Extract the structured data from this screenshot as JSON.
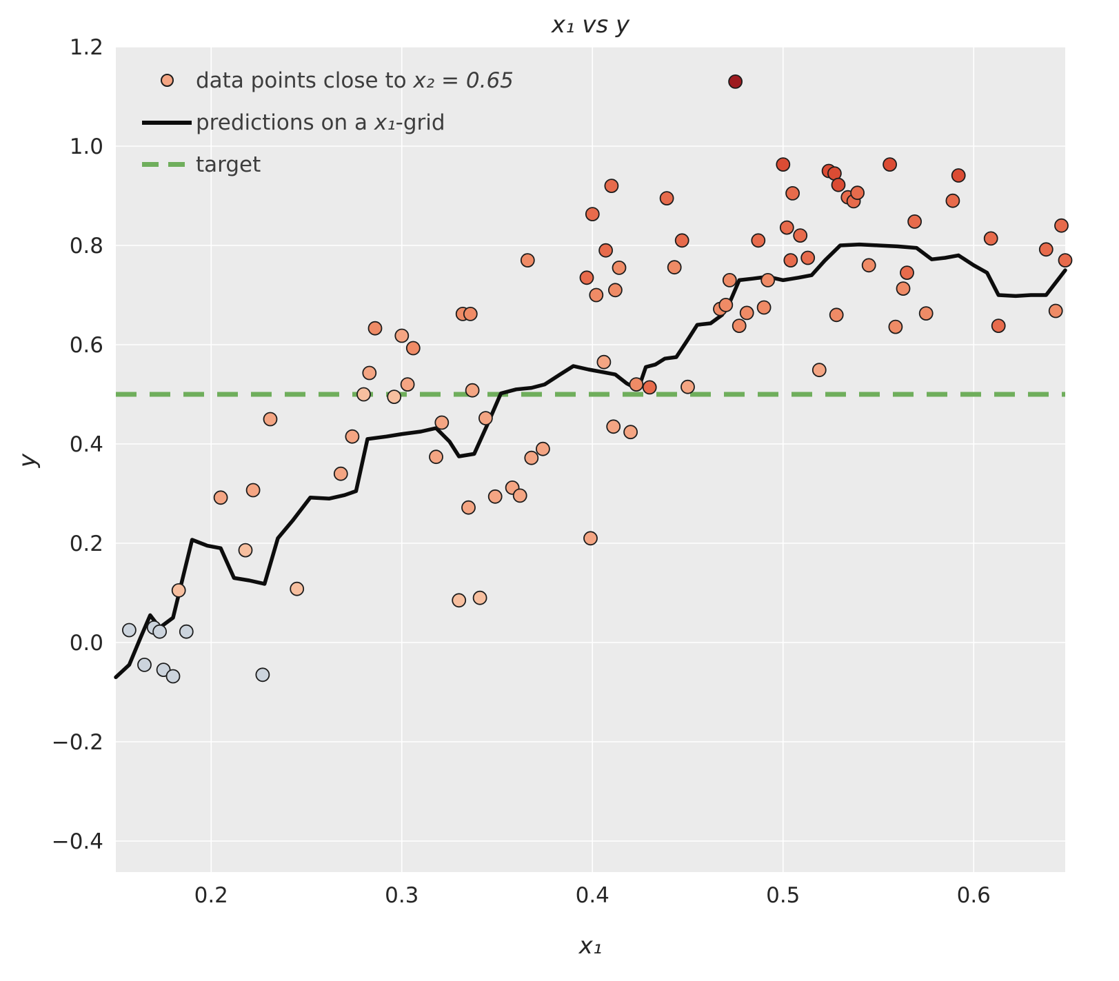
{
  "figure": {
    "title": "x₁ vs y",
    "xlabel": "x₁",
    "ylabel": "y"
  },
  "legend": {
    "items": [
      {
        "pre": "data points close to ",
        "math": "x₂ = 0.65",
        "post": "",
        "type": "marker",
        "color": "#f4a583"
      },
      {
        "pre": "predictions on a ",
        "math": "x₁",
        "post": "-grid",
        "type": "line",
        "color": "#0d0d0d"
      },
      {
        "pre": "target",
        "math": "",
        "post": "",
        "type": "dashed",
        "color": "#6fae5c"
      }
    ]
  },
  "chart_data": {
    "type": "scatter",
    "title": "x₁ vs y",
    "xlabel": "x₁",
    "ylabel": "y",
    "xlim": [
      0.15,
      0.648
    ],
    "ylim": [
      -0.4625,
      1.2
    ],
    "grid": true,
    "legend_position": "upper left",
    "background": "#ebebeb",
    "grid_color": "#ffffff",
    "tick_color": "#262626",
    "xticks": [
      {
        "v": 0.2,
        "label": "0.2"
      },
      {
        "v": 0.3,
        "label": "0.3"
      },
      {
        "v": 0.4,
        "label": "0.4"
      },
      {
        "v": 0.5,
        "label": "0.5"
      },
      {
        "v": 0.6,
        "label": "0.6"
      }
    ],
    "yticks": [
      {
        "v": -0.4,
        "label": "−0.4"
      },
      {
        "v": -0.2,
        "label": "−0.2"
      },
      {
        "v": 0.0,
        "label": "0.0"
      },
      {
        "v": 0.2,
        "label": "0.2"
      },
      {
        "v": 0.4,
        "label": "0.4"
      },
      {
        "v": 0.6,
        "label": "0.6"
      },
      {
        "v": 0.8,
        "label": "0.8"
      },
      {
        "v": 1.0,
        "label": "1.0"
      },
      {
        "v": 1.2,
        "label": "1.2"
      }
    ],
    "target_line": {
      "y": 0.5,
      "color": "#6fae5c",
      "dash": "30 19",
      "width": 7
    },
    "prediction_line": {
      "color": "#0d0d0d",
      "width": 5.5,
      "points": [
        [
          0.15,
          -0.07
        ],
        [
          0.157,
          -0.045
        ],
        [
          0.163,
          0.01
        ],
        [
          0.168,
          0.055
        ],
        [
          0.173,
          0.03
        ],
        [
          0.18,
          0.05
        ],
        [
          0.19,
          0.207
        ],
        [
          0.198,
          0.195
        ],
        [
          0.205,
          0.19
        ],
        [
          0.212,
          0.13
        ],
        [
          0.22,
          0.125
        ],
        [
          0.228,
          0.118
        ],
        [
          0.235,
          0.21
        ],
        [
          0.243,
          0.247
        ],
        [
          0.252,
          0.292
        ],
        [
          0.262,
          0.29
        ],
        [
          0.27,
          0.297
        ],
        [
          0.276,
          0.305
        ],
        [
          0.282,
          0.41
        ],
        [
          0.292,
          0.415
        ],
        [
          0.3,
          0.42
        ],
        [
          0.31,
          0.425
        ],
        [
          0.318,
          0.432
        ],
        [
          0.325,
          0.405
        ],
        [
          0.33,
          0.375
        ],
        [
          0.338,
          0.38
        ],
        [
          0.345,
          0.44
        ],
        [
          0.352,
          0.502
        ],
        [
          0.36,
          0.51
        ],
        [
          0.368,
          0.513
        ],
        [
          0.375,
          0.52
        ],
        [
          0.383,
          0.54
        ],
        [
          0.39,
          0.557
        ],
        [
          0.398,
          0.55
        ],
        [
          0.405,
          0.545
        ],
        [
          0.412,
          0.54
        ],
        [
          0.418,
          0.522
        ],
        [
          0.424,
          0.51
        ],
        [
          0.428,
          0.555
        ],
        [
          0.433,
          0.56
        ],
        [
          0.438,
          0.572
        ],
        [
          0.444,
          0.575
        ],
        [
          0.45,
          0.61
        ],
        [
          0.455,
          0.64
        ],
        [
          0.462,
          0.643
        ],
        [
          0.468,
          0.66
        ],
        [
          0.472,
          0.685
        ],
        [
          0.477,
          0.73
        ],
        [
          0.484,
          0.733
        ],
        [
          0.492,
          0.737
        ],
        [
          0.5,
          0.73
        ],
        [
          0.508,
          0.735
        ],
        [
          0.515,
          0.74
        ],
        [
          0.522,
          0.77
        ],
        [
          0.53,
          0.8
        ],
        [
          0.54,
          0.802
        ],
        [
          0.55,
          0.8
        ],
        [
          0.56,
          0.798
        ],
        [
          0.57,
          0.795
        ],
        [
          0.578,
          0.772
        ],
        [
          0.585,
          0.775
        ],
        [
          0.592,
          0.78
        ],
        [
          0.6,
          0.76
        ],
        [
          0.607,
          0.745
        ],
        [
          0.613,
          0.7
        ],
        [
          0.622,
          0.698
        ],
        [
          0.63,
          0.7
        ],
        [
          0.638,
          0.7
        ],
        [
          0.644,
          0.73
        ],
        [
          0.648,
          0.75
        ]
      ]
    },
    "scatter": {
      "radius": 9.5,
      "edge": "#1c1c1c",
      "edge_width": 1.8,
      "palette": [
        "#ccd4dd",
        "#f7bf9f",
        "#f4a583",
        "#ef8b66",
        "#e76b4c",
        "#db4c34",
        "#9e1b20"
      ],
      "points": [
        [
          0.157,
          0.025,
          0
        ],
        [
          0.165,
          -0.045,
          0
        ],
        [
          0.17,
          0.03,
          0
        ],
        [
          0.173,
          0.022,
          0
        ],
        [
          0.175,
          -0.055,
          0
        ],
        [
          0.18,
          -0.068,
          0
        ],
        [
          0.183,
          0.105,
          1
        ],
        [
          0.187,
          0.022,
          0
        ],
        [
          0.227,
          -0.065,
          0
        ],
        [
          0.205,
          0.292,
          2
        ],
        [
          0.218,
          0.186,
          1
        ],
        [
          0.222,
          0.307,
          2
        ],
        [
          0.231,
          0.45,
          2
        ],
        [
          0.245,
          0.108,
          1
        ],
        [
          0.268,
          0.34,
          2
        ],
        [
          0.274,
          0.415,
          2
        ],
        [
          0.28,
          0.5,
          1
        ],
        [
          0.283,
          0.543,
          2
        ],
        [
          0.286,
          0.633,
          3
        ],
        [
          0.296,
          0.495,
          1
        ],
        [
          0.3,
          0.618,
          2
        ],
        [
          0.303,
          0.52,
          2
        ],
        [
          0.306,
          0.593,
          3
        ],
        [
          0.318,
          0.374,
          2
        ],
        [
          0.321,
          0.443,
          2
        ],
        [
          0.33,
          0.085,
          1
        ],
        [
          0.332,
          0.662,
          3
        ],
        [
          0.336,
          0.662,
          3
        ],
        [
          0.335,
          0.272,
          2
        ],
        [
          0.337,
          0.508,
          2
        ],
        [
          0.341,
          0.09,
          1
        ],
        [
          0.344,
          0.452,
          2
        ],
        [
          0.349,
          0.294,
          2
        ],
        [
          0.358,
          0.312,
          2
        ],
        [
          0.362,
          0.296,
          2
        ],
        [
          0.366,
          0.77,
          3
        ],
        [
          0.368,
          0.372,
          2
        ],
        [
          0.374,
          0.39,
          2
        ],
        [
          0.397,
          0.735,
          4
        ],
        [
          0.399,
          0.21,
          2
        ],
        [
          0.4,
          0.863,
          4
        ],
        [
          0.402,
          0.7,
          3
        ],
        [
          0.406,
          0.565,
          2
        ],
        [
          0.407,
          0.79,
          4
        ],
        [
          0.41,
          0.92,
          4
        ],
        [
          0.411,
          0.435,
          2
        ],
        [
          0.412,
          0.71,
          3
        ],
        [
          0.414,
          0.755,
          3
        ],
        [
          0.42,
          0.424,
          2
        ],
        [
          0.423,
          0.52,
          3
        ],
        [
          0.43,
          0.514,
          4
        ],
        [
          0.439,
          0.895,
          4
        ],
        [
          0.443,
          0.756,
          3
        ],
        [
          0.447,
          0.81,
          4
        ],
        [
          0.45,
          0.515,
          2
        ],
        [
          0.467,
          0.672,
          3
        ],
        [
          0.47,
          0.68,
          3
        ],
        [
          0.472,
          0.73,
          3
        ],
        [
          0.475,
          1.13,
          6
        ],
        [
          0.477,
          0.638,
          3
        ],
        [
          0.481,
          0.664,
          3
        ],
        [
          0.487,
          0.81,
          4
        ],
        [
          0.49,
          0.675,
          3
        ],
        [
          0.492,
          0.73,
          3
        ],
        [
          0.5,
          0.963,
          5
        ],
        [
          0.502,
          0.836,
          4
        ],
        [
          0.504,
          0.77,
          4
        ],
        [
          0.505,
          0.905,
          4
        ],
        [
          0.509,
          0.82,
          4
        ],
        [
          0.513,
          0.775,
          4
        ],
        [
          0.519,
          0.549,
          2
        ],
        [
          0.524,
          0.95,
          5
        ],
        [
          0.527,
          0.945,
          5
        ],
        [
          0.529,
          0.922,
          5
        ],
        [
          0.528,
          0.66,
          3
        ],
        [
          0.534,
          0.897,
          4
        ],
        [
          0.537,
          0.889,
          4
        ],
        [
          0.539,
          0.906,
          4
        ],
        [
          0.545,
          0.76,
          3
        ],
        [
          0.556,
          0.963,
          5
        ],
        [
          0.559,
          0.636,
          3
        ],
        [
          0.563,
          0.713,
          3
        ],
        [
          0.565,
          0.745,
          4
        ],
        [
          0.569,
          0.848,
          4
        ],
        [
          0.575,
          0.663,
          3
        ],
        [
          0.589,
          0.89,
          4
        ],
        [
          0.592,
          0.941,
          5
        ],
        [
          0.609,
          0.814,
          4
        ],
        [
          0.613,
          0.638,
          4
        ],
        [
          0.638,
          0.792,
          4
        ],
        [
          0.643,
          0.668,
          3
        ],
        [
          0.646,
          0.84,
          4
        ],
        [
          0.648,
          0.77,
          4
        ]
      ]
    }
  }
}
